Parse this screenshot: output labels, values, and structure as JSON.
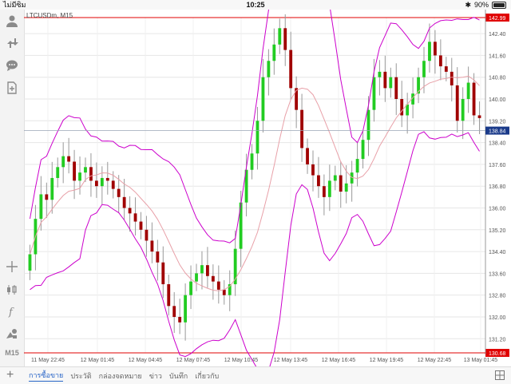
{
  "status": {
    "carrier": "ไม่มีซิม",
    "time": "10:25",
    "battery": "90%"
  },
  "chart": {
    "title": "LTCUSDm, M15",
    "timeframe": "M15",
    "colors": {
      "bull": "#22cc22",
      "bear": "#a00000",
      "band": "#cc00cc",
      "mid": "#e8a0a8",
      "hline": "#e00000",
      "price_label": "#1a3a8a",
      "grid": "#e6e6e6"
    },
    "y_labels": [
      "142.99",
      "142.40",
      "141.60",
      "140.80",
      "140.00",
      "139.20",
      "138.40",
      "137.60",
      "136.80",
      "136.00",
      "135.20",
      "134.40",
      "133.60",
      "132.80",
      "132.00",
      "131.20",
      "130.68"
    ],
    "x_labels": [
      "11 May 22:45",
      "12 May 01:45",
      "12 May 04:45",
      "12 May 07:45",
      "12 May 10:45",
      "12 May 13:45",
      "12 May 16:45",
      "12 May 19:45",
      "12 May 22:45",
      "13 May 01:45"
    ],
    "high_line": "142.99",
    "low_line": "130.68",
    "current_price": "138.84"
  },
  "chart_data": {
    "type": "candlestick",
    "title": "LTCUSDm, M15",
    "ylim": [
      130.68,
      142.99
    ],
    "x": [
      "11 May 22:45",
      "12 May 01:45",
      "12 May 04:45",
      "12 May 07:45",
      "12 May 10:45",
      "12 May 13:45",
      "12 May 16:45",
      "12 May 19:45",
      "12 May 22:45",
      "13 May 01:45"
    ],
    "closes": [
      134.3,
      135.6,
      136.5,
      136.3,
      137.1,
      137.5,
      137.9,
      137.7,
      137.0,
      137.3,
      137.5,
      137.0,
      136.8,
      137.1,
      137.0,
      136.7,
      136.4,
      136.0,
      135.8,
      135.5,
      135.2,
      134.8,
      134.4,
      134.0,
      133.2,
      132.4,
      132.0,
      131.8,
      132.8,
      133.3,
      133.6,
      133.9,
      133.5,
      133.3,
      133.0,
      132.8,
      133.2,
      134.5,
      136.2,
      137.4,
      138.0,
      139.2,
      140.8,
      141.4,
      142.0,
      142.6,
      141.8,
      140.4,
      139.6,
      138.2,
      137.6,
      137.2,
      136.8,
      136.4,
      137.0,
      137.2,
      136.6,
      136.9,
      137.3,
      137.8,
      138.5,
      139.6,
      140.8,
      141.0,
      140.4,
      140.8,
      140.0,
      139.4,
      139.8,
      140.2,
      140.8,
      141.4,
      142.1,
      141.6,
      141.2,
      141.0,
      140.5,
      139.2,
      140.0,
      140.6,
      139.4,
      139.3
    ]
  }
}
